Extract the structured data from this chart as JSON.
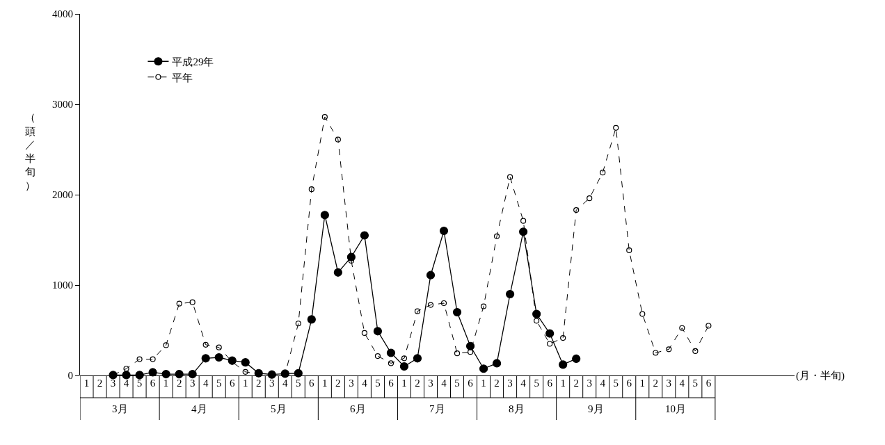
{
  "chart_data": {
    "type": "line",
    "ylabel": "（頭／半旬）",
    "categories": [
      "1",
      "2",
      "3",
      "4",
      "5",
      "6",
      "1",
      "2",
      "3",
      "4",
      "5",
      "6",
      "1",
      "2",
      "3",
      "4",
      "5",
      "6",
      "1",
      "2",
      "3",
      "4",
      "5",
      "6",
      "1",
      "2",
      "3",
      "4",
      "5",
      "6",
      "1",
      "2",
      "3",
      "4",
      "5",
      "6",
      "1",
      "2",
      "3",
      "4",
      "5",
      "6",
      "1",
      "2",
      "3",
      "4",
      "5",
      "6"
    ],
    "annotations": [
      "3月",
      "4月",
      "5月",
      "6月",
      "7月",
      "8月",
      "9月",
      "10月",
      "(月・半旬)"
    ],
    "series": [
      {
        "name": "平成29年",
        "color": "#000000",
        "marker": "circle",
        "line_style": "solid",
        "values": [
          null,
          null,
          5,
          5,
          5,
          35,
          15,
          15,
          15,
          190,
          200,
          165,
          145,
          25,
          10,
          20,
          25,
          620,
          1775,
          1140,
          1310,
          1550,
          490,
          250,
          100,
          190,
          1110,
          1600,
          700,
          325,
          75,
          135,
          900,
          1590,
          680,
          465,
          120,
          185,
          null,
          null,
          null,
          null,
          null,
          null,
          null,
          null,
          null,
          null
        ]
      },
      {
        "name": "平年",
        "color": "#000000",
        "marker": "circle-open",
        "line_style": "dashed",
        "values": [
          null,
          null,
          5,
          75,
          180,
          180,
          335,
          795,
          810,
          340,
          310,
          150,
          40,
          15,
          10,
          15,
          575,
          2060,
          2860,
          2610,
          1270,
          470,
          215,
          135,
          190,
          710,
          780,
          800,
          245,
          260,
          765,
          1540,
          2195,
          1710,
          605,
          350,
          415,
          1830,
          1960,
          2245,
          2740,
          1385,
          680,
          250,
          290,
          525,
          270,
          550
        ]
      }
    ],
    "ylim": [
      0,
      4000
    ],
    "yticks": [
      0,
      1000,
      2000,
      3000,
      4000
    ],
    "grid": false,
    "legend": "top left"
  }
}
